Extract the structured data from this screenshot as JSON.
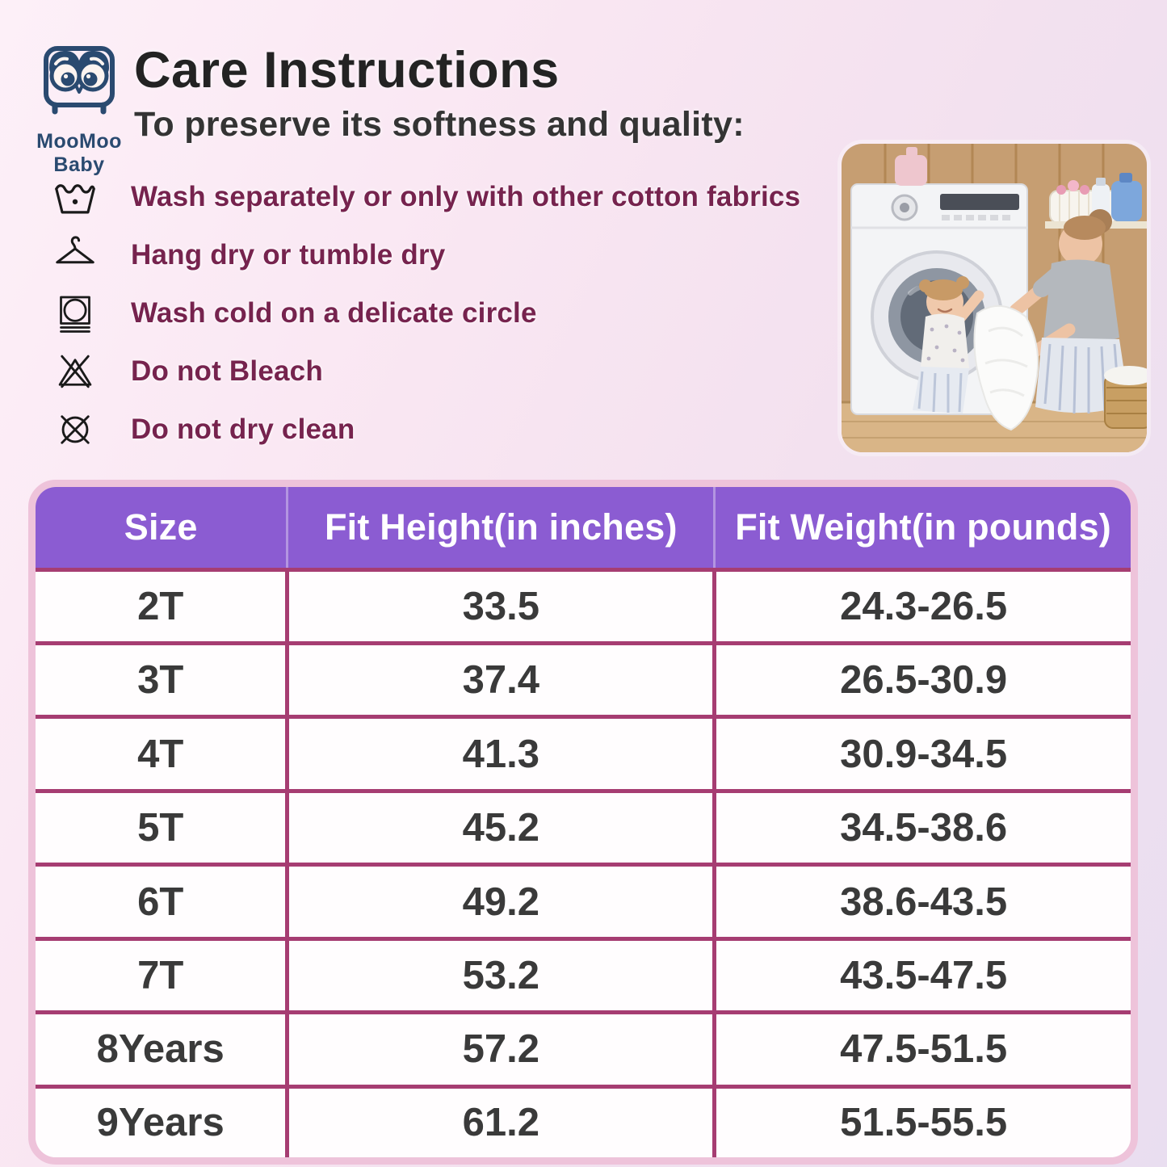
{
  "brand": {
    "name": "MooMoo Baby",
    "logo_color": "#2a4a70"
  },
  "header": {
    "title": "Care Instructions",
    "subtitle": "To preserve its softness and quality:"
  },
  "care": {
    "text_color": "#76234e",
    "items": [
      {
        "icon": "wash-icon",
        "label": "Wash separately or only with other cotton fabrics"
      },
      {
        "icon": "hang-dry-icon",
        "label": "Hang dry or tumble dry"
      },
      {
        "icon": "delicate-wash-icon",
        "label": "Wash cold on a delicate circle"
      },
      {
        "icon": "do-not-bleach-icon",
        "label": "Do not Bleach"
      },
      {
        "icon": "do-not-dry-clean-icon",
        "label": "Do not dry clean"
      }
    ]
  },
  "sizing_table": {
    "headers": [
      "Size",
      "Fit Height(in inches)",
      "Fit Weight(in pounds)"
    ],
    "rows": [
      [
        "2T",
        "33.5",
        "24.3-26.5"
      ],
      [
        "3T",
        "37.4",
        "26.5-30.9"
      ],
      [
        "4T",
        "41.3",
        "30.9-34.5"
      ],
      [
        "5T",
        "45.2",
        "34.5-38.6"
      ],
      [
        "6T",
        "49.2",
        "38.6-43.5"
      ],
      [
        "7T",
        "53.2",
        "43.5-47.5"
      ],
      [
        "8Years",
        "57.2",
        "47.5-51.5"
      ],
      [
        "9Years",
        "61.2",
        "51.5-55.5"
      ]
    ],
    "header_bg_color": "#8b5cd2",
    "grid_line_color": "#a63d72",
    "outer_border_color": "#eec3da"
  }
}
